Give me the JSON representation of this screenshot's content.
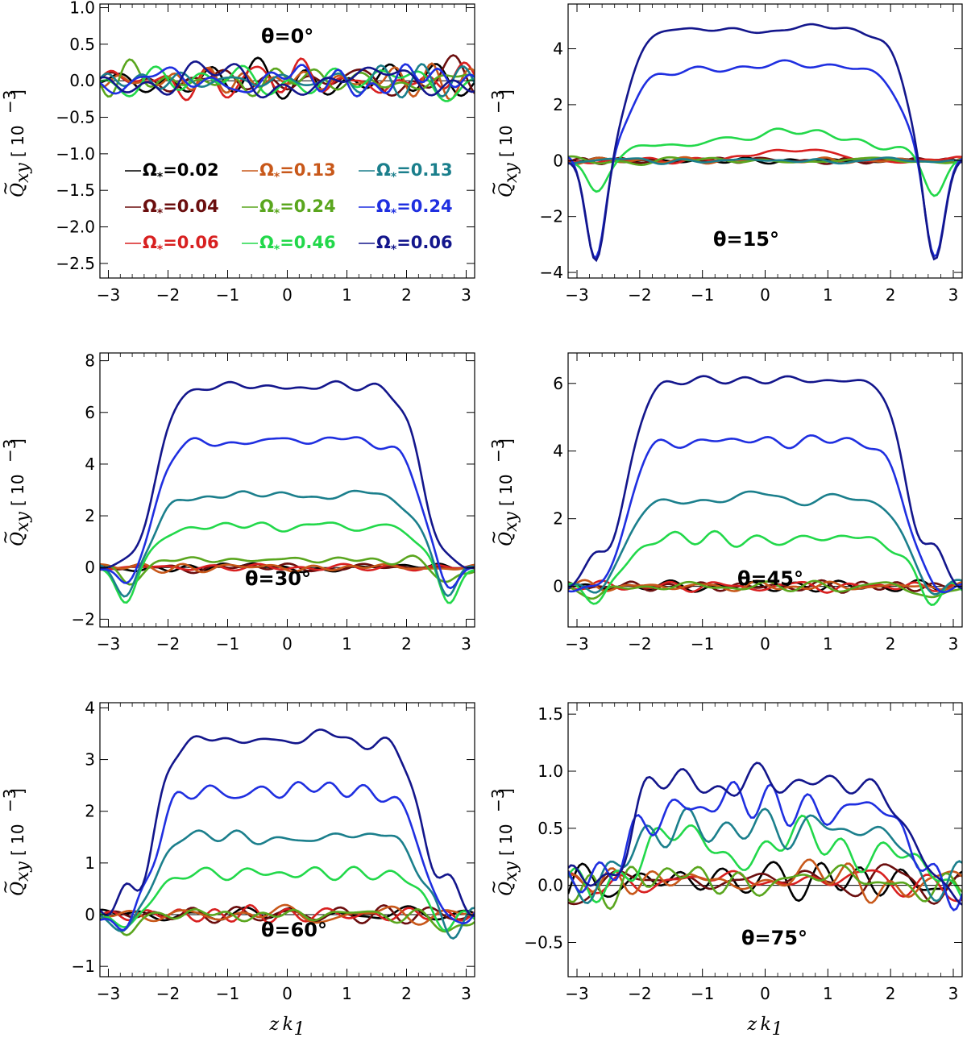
{
  "figure": {
    "xlabel_main": "z",
    "xlabel_sub_k": "k",
    "xlabel_sub_index": "1",
    "ylabel_main": "Q",
    "ylabel_tilde": "~",
    "ylabel_sub": "xy",
    "ylabel_unit_open": "[ 10",
    "ylabel_unit_exp": "−3",
    "ylabel_unit_close": "]"
  },
  "legend": {
    "entries": [
      {
        "label": "Ω",
        "sub": "*",
        "value": "=0.02",
        "color": "#000000"
      },
      {
        "label": "Ω",
        "sub": "*",
        "value": "=0.13",
        "color": "#c8581a"
      },
      {
        "label": "Ω",
        "sub": "*",
        "value": "=0.13",
        "color": "#1b7f8c"
      },
      {
        "label": "Ω",
        "sub": "*",
        "value": "=0.04",
        "color": "#6b0e0e"
      },
      {
        "label": "Ω",
        "sub": "*",
        "value": "=0.24",
        "color": "#5aa61e"
      },
      {
        "label": "Ω",
        "sub": "*",
        "value": "=0.24",
        "color": "#1f2fe0"
      },
      {
        "label": "Ω",
        "sub": "*",
        "value": "=0.06",
        "color": "#d82020"
      },
      {
        "label": "Ω",
        "sub": "*",
        "value": "=0.46",
        "color": "#22d84a"
      },
      {
        "label": "Ω",
        "sub": "*",
        "value": "=0.06",
        "color": "#13168c"
      }
    ]
  },
  "chart_data": [
    {
      "type": "line",
      "panel": "theta-0",
      "title": "θ=0°",
      "xlim": [
        -3.14159,
        3.14159
      ],
      "ylim": [
        -2.7,
        1.05
      ],
      "xticks": [
        -3,
        -2,
        -1,
        0,
        1,
        2,
        3
      ],
      "yticks": [
        -2.5,
        -2.0,
        -1.5,
        -1.0,
        -0.5,
        0.0,
        0.5,
        1.0
      ],
      "ytick_labels": [
        "−2.5",
        "−2.0",
        "−1.5",
        "−1.0",
        "−0.5",
        "0.0",
        "0.5",
        "1.0"
      ],
      "xtick_labels": [
        "−3",
        "−2",
        "−1",
        "0",
        "1",
        "2",
        "3"
      ],
      "series_plateaus": [
        0,
        0,
        0,
        0,
        0,
        0,
        0,
        0,
        0
      ],
      "noise_amplitude": 0.28,
      "edge_dips": [
        0,
        0,
        0,
        0,
        0,
        0,
        0,
        0,
        0
      ]
    },
    {
      "type": "line",
      "panel": "theta-15",
      "title": "θ=15°",
      "xlim": [
        -3.14159,
        3.14159
      ],
      "ylim": [
        -4.2,
        5.6
      ],
      "xticks": [
        -3,
        -2,
        -1,
        0,
        1,
        2,
        3
      ],
      "yticks": [
        -4,
        -2,
        0,
        2,
        4
      ],
      "ytick_labels": [
        "−4",
        "−2",
        "0",
        "2",
        "4"
      ],
      "xtick_labels": [
        "−3",
        "−2",
        "−1",
        "0",
        "1",
        "2",
        "3"
      ],
      "series_plateaus": [
        0.0,
        0.0,
        0.0,
        0.0,
        0.0,
        3.2,
        0.0,
        0.6,
        4.7
      ],
      "mid_peak": [
        0,
        0,
        0,
        0,
        0,
        0.3,
        0.4,
        0.5,
        0
      ],
      "noise_amplitude": 0.15,
      "edge_dips": [
        0,
        0,
        0,
        0,
        0,
        -3.6,
        0,
        -1.2,
        -3.8
      ]
    },
    {
      "type": "line",
      "panel": "theta-30",
      "title": "θ=30°",
      "xlim": [
        -3.14159,
        3.14159
      ],
      "ylim": [
        -2.3,
        8.3
      ],
      "xticks": [
        -3,
        -2,
        -1,
        0,
        1,
        2,
        3
      ],
      "yticks": [
        -2,
        0,
        2,
        4,
        6,
        8
      ],
      "ytick_labels": [
        "−2",
        "0",
        "2",
        "4",
        "6",
        "8"
      ],
      "xtick_labels": [
        "−3",
        "−2",
        "−1",
        "0",
        "1",
        "2",
        "3"
      ],
      "series_plateaus": [
        0.0,
        0.0,
        2.8,
        0.0,
        0.3,
        4.9,
        0.0,
        1.6,
        7.0
      ],
      "noise_amplitude": 0.2,
      "edge_dips": [
        0,
        0,
        -1.2,
        0,
        -0.6,
        -1.0,
        0,
        -1.4,
        0
      ]
    },
    {
      "type": "line",
      "panel": "theta-45",
      "title": "θ=45°",
      "xlim": [
        -3.14159,
        3.14159
      ],
      "ylim": [
        -1.2,
        6.9
      ],
      "xticks": [
        -3,
        -2,
        -1,
        0,
        1,
        2,
        3
      ],
      "yticks": [
        0,
        2,
        4,
        6
      ],
      "ytick_labels": [
        "0",
        "2",
        "4",
        "6"
      ],
      "xtick_labels": [
        "−3",
        "−2",
        "−1",
        "0",
        "1",
        "2",
        "3"
      ],
      "series_plateaus": [
        0.0,
        0.0,
        2.6,
        0.0,
        0.0,
        4.3,
        0.0,
        1.4,
        6.1
      ],
      "noise_amplitude": 0.2,
      "edge_dips": [
        0,
        0,
        -0.3,
        0,
        -0.4,
        -0.2,
        0,
        -0.4,
        0.8
      ]
    },
    {
      "type": "line",
      "panel": "theta-60",
      "title": "θ=60°",
      "xlim": [
        -3.14159,
        3.14159
      ],
      "ylim": [
        -1.2,
        4.1
      ],
      "xticks": [
        -3,
        -2,
        -1,
        0,
        1,
        2,
        3
      ],
      "yticks": [
        -1,
        0,
        1,
        2,
        3,
        4
      ],
      "ytick_labels": [
        "−1",
        "0",
        "1",
        "2",
        "3",
        "4"
      ],
      "xtick_labels": [
        "−3",
        "−2",
        "−1",
        "0",
        "1",
        "2",
        "3"
      ],
      "series_plateaus": [
        0.0,
        0.0,
        1.5,
        0.0,
        0.0,
        2.4,
        0.0,
        0.8,
        3.4
      ],
      "noise_amplitude": 0.2,
      "edge_dips": [
        0,
        0,
        -0.3,
        0,
        -0.4,
        -0.3,
        0,
        -0.3,
        0.5
      ]
    },
    {
      "type": "line",
      "panel": "theta-75",
      "title": "θ=75°",
      "xlim": [
        -3.14159,
        3.14159
      ],
      "ylim": [
        -0.8,
        1.6
      ],
      "xticks": [
        -3,
        -2,
        -1,
        0,
        1,
        2,
        3
      ],
      "yticks": [
        -0.5,
        0.0,
        0.5,
        1.0,
        1.5
      ],
      "ytick_labels": [
        "−0.5",
        "0.0",
        "0.5",
        "1.0",
        "1.5"
      ],
      "xtick_labels": [
        "−3",
        "−2",
        "−1",
        "0",
        "1",
        "2",
        "3"
      ],
      "series_plateaus": [
        0.05,
        0.05,
        0.5,
        0.05,
        0.05,
        0.7,
        0.05,
        0.35,
        0.9
      ],
      "noise_amplitude": 0.2,
      "edge_dips": [
        0,
        0,
        0,
        0,
        0,
        0,
        0,
        0,
        0
      ]
    }
  ]
}
